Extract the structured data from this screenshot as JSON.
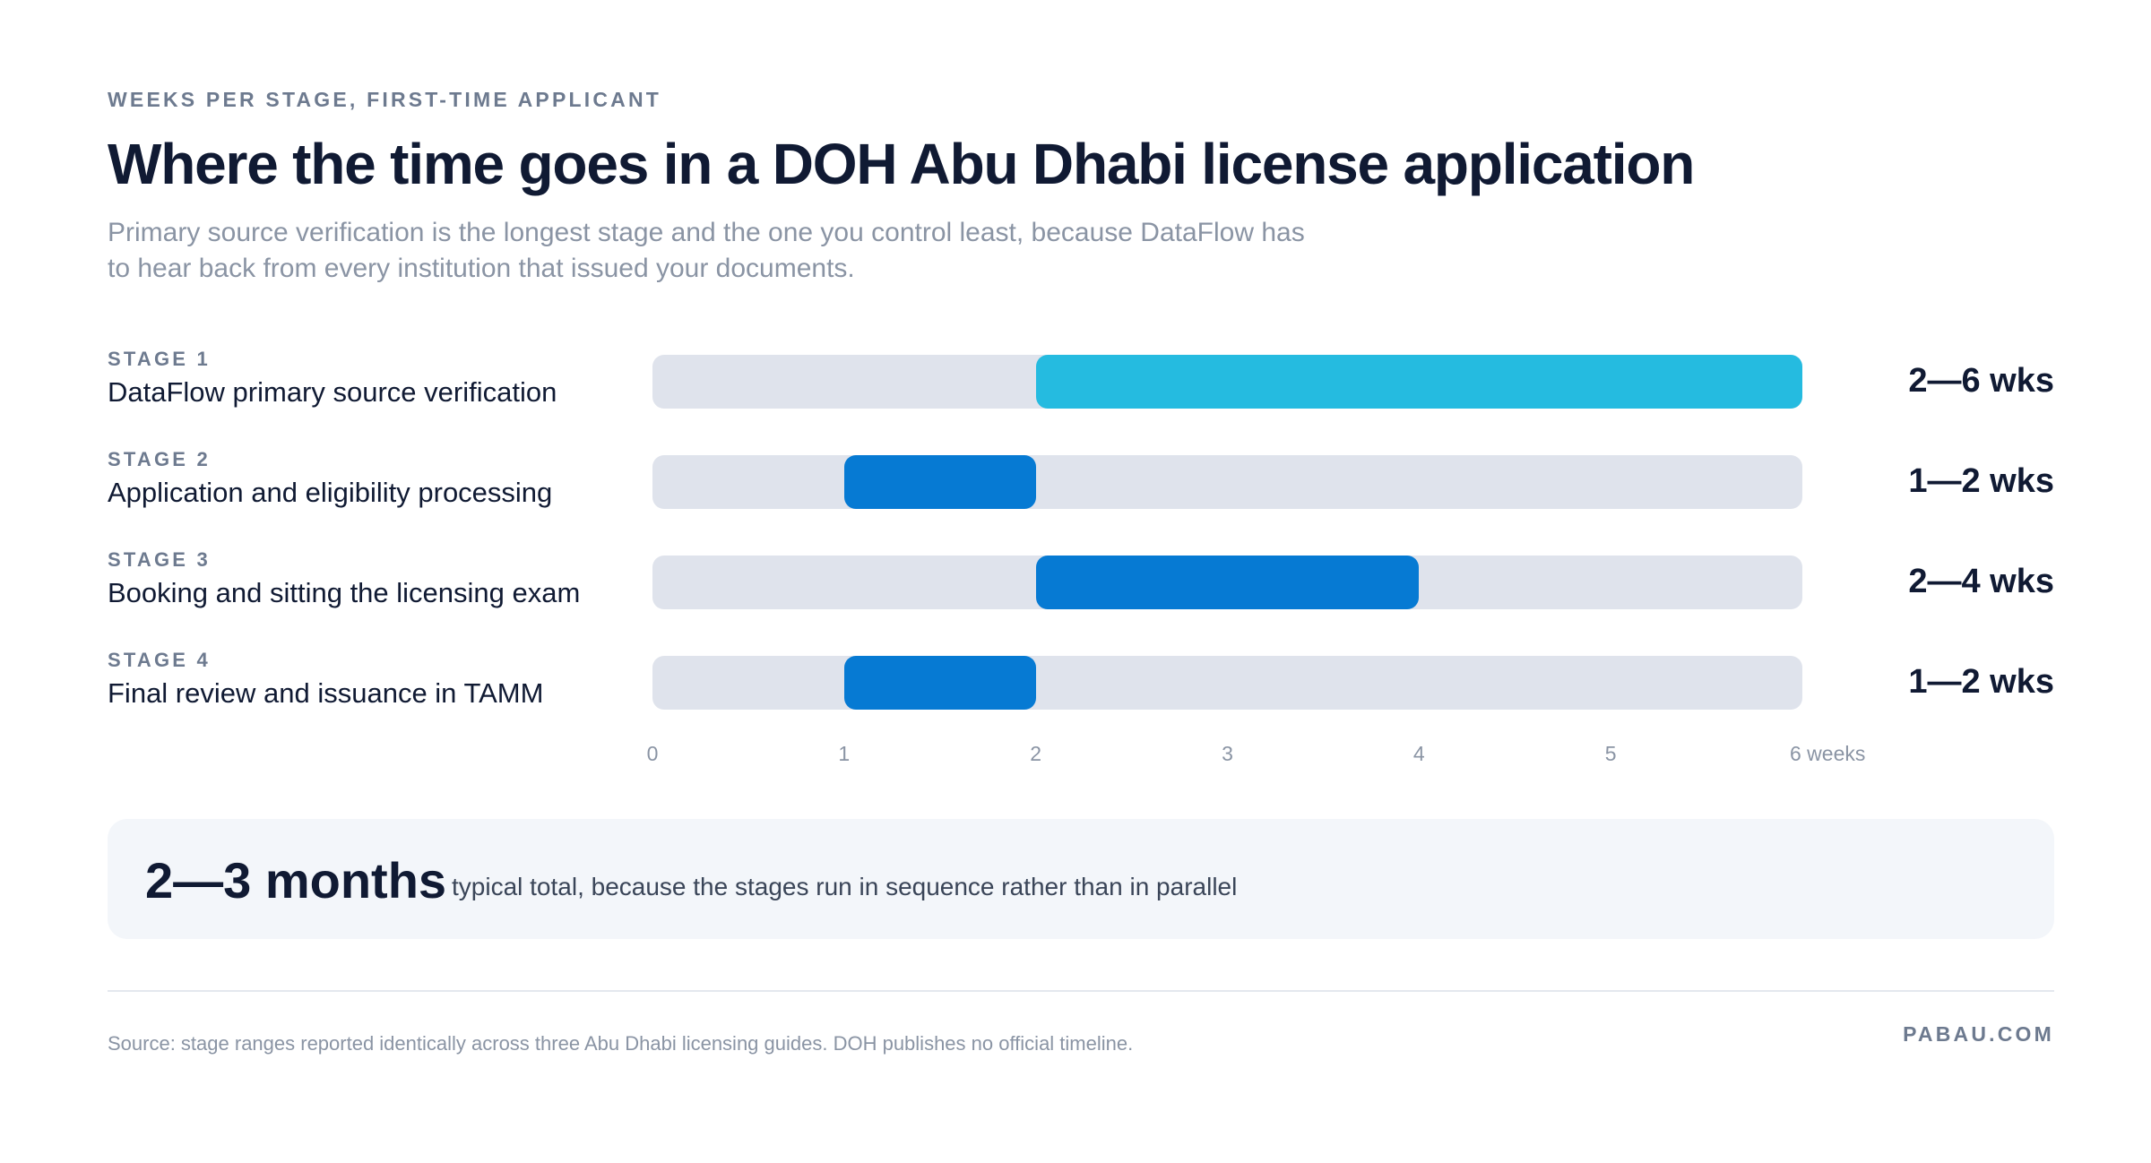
{
  "header": {
    "eyebrow": "WEEKS PER STAGE, FIRST-TIME APPLICANT",
    "title": "Where the time goes in a DOH Abu Dhabi license application",
    "subtitle": "Primary source verification is the longest stage and the one you control least, because DataFlow has to hear back from every institution that issued your documents."
  },
  "chart_data": {
    "type": "bar",
    "orientation": "horizontal-range",
    "title": "Where the time goes in a DOH Abu Dhabi license application",
    "xlabel": "weeks",
    "xlim": [
      0,
      6
    ],
    "x_ticks": [
      "0",
      "1",
      "2",
      "3",
      "4",
      "5",
      "6 weeks"
    ],
    "grid": false,
    "stages": [
      {
        "tag": "STAGE 1",
        "name": "DataFlow primary source verification",
        "min": 2,
        "max": 6,
        "label": "2—6 wks",
        "color": "#25bbe0"
      },
      {
        "tag": "STAGE 2",
        "name": "Application and eligibility processing",
        "min": 1,
        "max": 2,
        "label": "1—2 wks",
        "color": "#067ad3"
      },
      {
        "tag": "STAGE 3",
        "name": "Booking and sitting the licensing exam",
        "min": 2,
        "max": 4,
        "label": "2—4 wks",
        "color": "#067ad3"
      },
      {
        "tag": "STAGE 4",
        "name": "Final review and issuance in TAMM",
        "min": 1,
        "max": 2,
        "label": "1—2 wks",
        "color": "#067ad3"
      }
    ]
  },
  "total": {
    "value": "2—3 months",
    "note": "typical total, because the stages run in sequence rather than in parallel"
  },
  "footer": {
    "source": "Source: stage ranges reported identically across three Abu Dhabi licensing guides. DOH publishes no official timeline.",
    "brand": "PABAU.COM"
  }
}
